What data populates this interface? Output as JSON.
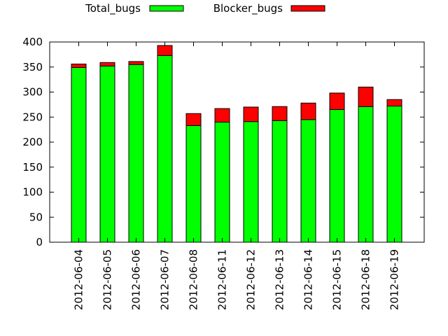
{
  "chart_data": {
    "type": "bar",
    "stacked": true,
    "title": "",
    "xlabel": "",
    "ylabel": "",
    "ylim": [
      0,
      400
    ],
    "yticks": [
      0,
      50,
      100,
      150,
      200,
      250,
      300,
      350,
      400
    ],
    "grid": false,
    "legend": "top-left",
    "categories": [
      "2012-06-04",
      "2012-06-05",
      "2012-06-06",
      "2012-06-07",
      "2012-06-08",
      "2012-06-11",
      "2012-06-12",
      "2012-06-13",
      "2012-06-14",
      "2012-06-15",
      "2012-06-18",
      "2012-06-19"
    ],
    "series": [
      {
        "name": "Total_bugs",
        "color": "#00ff00",
        "values": [
          349,
          352,
          355,
          373,
          233,
          240,
          241,
          243,
          245,
          265,
          271,
          272
        ]
      },
      {
        "name": "Blocker_bugs",
        "color": "#ff0000",
        "values": [
          7,
          7,
          6,
          20,
          24,
          27,
          29,
          28,
          33,
          33,
          39,
          13
        ]
      }
    ]
  }
}
